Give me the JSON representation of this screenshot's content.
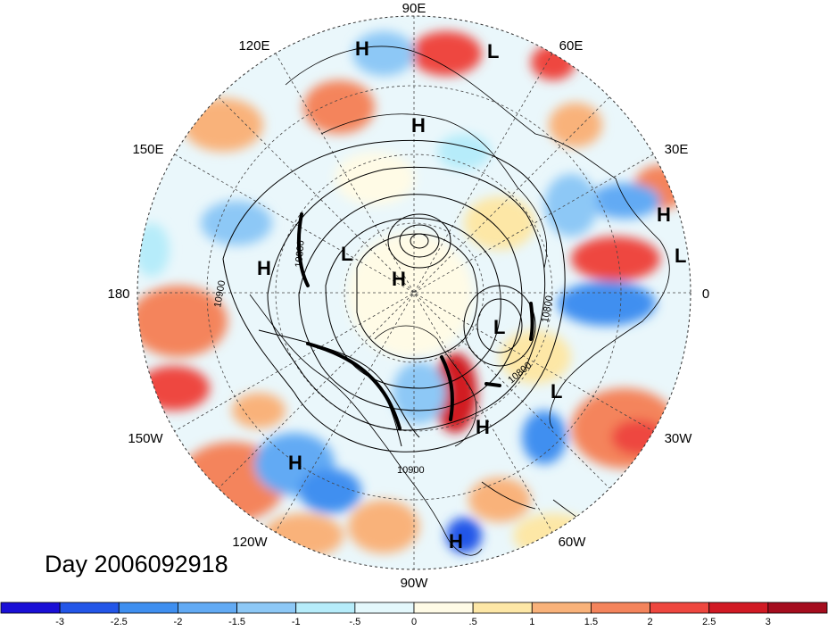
{
  "title": "Day 2006092918",
  "lon_labels": {
    "n90e": "90E",
    "n120e": "120E",
    "n60e": "60E",
    "n150e": "150E",
    "n30e": "30E",
    "n180": "180",
    "n0": "0",
    "n150w": "150W",
    "n30w": "30W",
    "n120w": "120W",
    "n60w": "60W",
    "n90w": "90W"
  },
  "pressure_centers": [
    {
      "type": "H"
    },
    {
      "type": "L"
    },
    {
      "type": "H"
    },
    {
      "type": "H"
    },
    {
      "type": "L"
    },
    {
      "type": "H"
    },
    {
      "type": "L"
    },
    {
      "type": "H"
    },
    {
      "type": "L"
    },
    {
      "type": "L"
    },
    {
      "type": "H"
    },
    {
      "type": "H"
    },
    {
      "type": "H"
    }
  ],
  "contour_labels": [
    "10900",
    "10800",
    "10800",
    "10800",
    "10900"
  ],
  "colorbar": {
    "colors": [
      "#1a0fd6",
      "#2356e8",
      "#3f8ff0",
      "#62aaf4",
      "#8dc8f6",
      "#b6ecfa",
      "#e4f8fc",
      "#fffbe6",
      "#fde7a6",
      "#f9b27a",
      "#f4845c",
      "#ee473f",
      "#d11a24",
      "#a50d1e"
    ],
    "tick_labels": [
      "-3",
      "-2.5",
      "-2",
      "-1.5",
      "-1",
      "-.5",
      "0",
      ".5",
      "1",
      "1.5",
      "2",
      "2.5",
      "3"
    ]
  },
  "colors": {
    "ocean_field_base": "#e9f6fb",
    "contour": "#000000",
    "grid": "#444444"
  }
}
